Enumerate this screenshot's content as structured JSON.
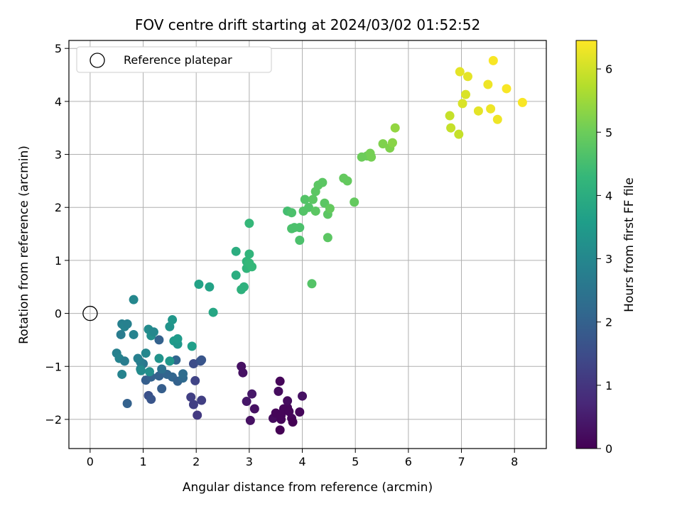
{
  "chart_data": {
    "type": "scatter",
    "title": "FOV centre drift starting at 2024/03/02 01:52:52",
    "xlabel": "Angular distance from reference (arcmin)",
    "ylabel": "Rotation from reference (arcmin)",
    "xlim": [
      -0.4,
      8.6
    ],
    "ylim": [
      -2.55,
      5.15
    ],
    "xticks": [
      0,
      1,
      2,
      3,
      4,
      5,
      6,
      7,
      8
    ],
    "yticks": [
      -2,
      -1,
      0,
      1,
      2,
      3,
      4,
      5
    ],
    "grid": true,
    "legend": {
      "placement": "top-left",
      "entries": [
        "Reference platepar"
      ]
    },
    "reference_point": {
      "x": 0,
      "y": 0
    },
    "colorbar": {
      "label": "Hours from first FF file",
      "range": [
        0,
        6.45
      ],
      "ticks": [
        0,
        1,
        2,
        3,
        4,
        5,
        6
      ],
      "colormap": "viridis"
    },
    "points": [
      {
        "x": 2.85,
        "y": -1.0,
        "t": 0.3
      },
      {
        "x": 2.88,
        "y": -1.12,
        "t": 0.3
      },
      {
        "x": 2.95,
        "y": -1.66,
        "t": 0.4
      },
      {
        "x": 3.05,
        "y": -1.52,
        "t": 0.4
      },
      {
        "x": 3.1,
        "y": -1.8,
        "t": 0.3
      },
      {
        "x": 3.02,
        "y": -2.02,
        "t": 0.3
      },
      {
        "x": 3.45,
        "y": -1.98,
        "t": 0.2
      },
      {
        "x": 3.5,
        "y": -1.88,
        "t": 0.1
      },
      {
        "x": 3.55,
        "y": -1.47,
        "t": 0.2
      },
      {
        "x": 3.58,
        "y": -1.28,
        "t": 0.1
      },
      {
        "x": 3.6,
        "y": -1.92,
        "t": 0.1
      },
      {
        "x": 3.65,
        "y": -1.8,
        "t": 0.1
      },
      {
        "x": 3.58,
        "y": -2.2,
        "t": 0.0
      },
      {
        "x": 3.6,
        "y": -2.0,
        "t": 0.1
      },
      {
        "x": 3.72,
        "y": -1.78,
        "t": 0.1
      },
      {
        "x": 3.75,
        "y": -1.85,
        "t": 0.1
      },
      {
        "x": 3.72,
        "y": -1.65,
        "t": 0.2
      },
      {
        "x": 3.8,
        "y": -1.98,
        "t": 0.1
      },
      {
        "x": 3.82,
        "y": -2.05,
        "t": 0.0
      },
      {
        "x": 3.95,
        "y": -1.86,
        "t": 0.1
      },
      {
        "x": 4.0,
        "y": -1.56,
        "t": 0.3
      },
      {
        "x": 1.95,
        "y": -1.72,
        "t": 1.2
      },
      {
        "x": 1.9,
        "y": -1.58,
        "t": 1.2
      },
      {
        "x": 2.02,
        "y": -1.92,
        "t": 1.1
      },
      {
        "x": 2.1,
        "y": -1.64,
        "t": 1.2
      },
      {
        "x": 1.98,
        "y": -1.27,
        "t": 1.3
      },
      {
        "x": 1.95,
        "y": -0.95,
        "t": 1.5
      },
      {
        "x": 2.08,
        "y": -0.9,
        "t": 1.6
      },
      {
        "x": 2.1,
        "y": -0.88,
        "t": 1.7
      },
      {
        "x": 1.1,
        "y": -1.55,
        "t": 1.6
      },
      {
        "x": 1.15,
        "y": -1.62,
        "t": 1.7
      },
      {
        "x": 0.7,
        "y": -1.7,
        "t": 2.0
      },
      {
        "x": 1.05,
        "y": -1.26,
        "t": 1.9
      },
      {
        "x": 1.15,
        "y": -1.2,
        "t": 2.0
      },
      {
        "x": 1.3,
        "y": -1.18,
        "t": 2.0
      },
      {
        "x": 1.35,
        "y": -1.42,
        "t": 1.9
      },
      {
        "x": 1.45,
        "y": -1.15,
        "t": 2.1
      },
      {
        "x": 1.55,
        "y": -1.2,
        "t": 2.1
      },
      {
        "x": 1.65,
        "y": -1.28,
        "t": 2.0
      },
      {
        "x": 1.75,
        "y": -1.22,
        "t": 2.2
      },
      {
        "x": 1.75,
        "y": -1.14,
        "t": 2.3
      },
      {
        "x": 1.62,
        "y": -0.88,
        "t": 2.1
      },
      {
        "x": 1.3,
        "y": -0.5,
        "t": 2.0
      },
      {
        "x": 1.35,
        "y": -1.05,
        "t": 2.4
      },
      {
        "x": 1.0,
        "y": -0.95,
        "t": 2.5
      },
      {
        "x": 0.95,
        "y": -0.92,
        "t": 2.7
      },
      {
        "x": 0.9,
        "y": -0.85,
        "t": 2.8
      },
      {
        "x": 0.95,
        "y": -1.05,
        "t": 2.9
      },
      {
        "x": 0.6,
        "y": -1.15,
        "t": 2.9
      },
      {
        "x": 0.5,
        "y": -0.75,
        "t": 2.8
      },
      {
        "x": 0.55,
        "y": -0.85,
        "t": 2.9
      },
      {
        "x": 0.65,
        "y": -0.9,
        "t": 2.7
      },
      {
        "x": 0.58,
        "y": -0.4,
        "t": 2.7
      },
      {
        "x": 0.6,
        "y": -0.2,
        "t": 2.8
      },
      {
        "x": 0.65,
        "y": -0.25,
        "t": 2.9
      },
      {
        "x": 0.7,
        "y": -0.2,
        "t": 2.8
      },
      {
        "x": 0.82,
        "y": -0.4,
        "t": 2.9
      },
      {
        "x": 0.82,
        "y": 0.26,
        "t": 3.0
      },
      {
        "x": 1.05,
        "y": -0.75,
        "t": 3.0
      },
      {
        "x": 1.12,
        "y": -1.1,
        "t": 3.2
      },
      {
        "x": 0.96,
        "y": -1.08,
        "t": 3.1
      },
      {
        "x": 1.1,
        "y": -0.3,
        "t": 3.1
      },
      {
        "x": 1.15,
        "y": -0.42,
        "t": 3.2
      },
      {
        "x": 1.2,
        "y": -0.35,
        "t": 3.0
      },
      {
        "x": 1.3,
        "y": -0.85,
        "t": 3.3
      },
      {
        "x": 1.5,
        "y": -0.9,
        "t": 3.4
      },
      {
        "x": 1.5,
        "y": -0.25,
        "t": 3.3
      },
      {
        "x": 1.55,
        "y": -0.12,
        "t": 3.4
      },
      {
        "x": 1.58,
        "y": -0.52,
        "t": 3.5
      },
      {
        "x": 1.65,
        "y": -0.58,
        "t": 3.4
      },
      {
        "x": 1.65,
        "y": -0.48,
        "t": 3.5
      },
      {
        "x": 1.92,
        "y": -0.62,
        "t": 3.6
      },
      {
        "x": 2.05,
        "y": 0.55,
        "t": 3.7
      },
      {
        "x": 2.25,
        "y": 0.5,
        "t": 3.7
      },
      {
        "x": 2.32,
        "y": 0.02,
        "t": 3.8
      },
      {
        "x": 2.75,
        "y": 1.17,
        "t": 4.0
      },
      {
        "x": 2.75,
        "y": 0.72,
        "t": 4.0
      },
      {
        "x": 2.85,
        "y": 0.45,
        "t": 4.1
      },
      {
        "x": 2.9,
        "y": 0.5,
        "t": 4.1
      },
      {
        "x": 2.95,
        "y": 0.98,
        "t": 4.2
      },
      {
        "x": 2.95,
        "y": 0.85,
        "t": 4.2
      },
      {
        "x": 3.0,
        "y": 1.12,
        "t": 4.2
      },
      {
        "x": 3.0,
        "y": 0.95,
        "t": 4.3
      },
      {
        "x": 3.05,
        "y": 0.88,
        "t": 4.3
      },
      {
        "x": 3.0,
        "y": 1.7,
        "t": 4.3
      },
      {
        "x": 3.72,
        "y": 1.93,
        "t": 4.5
      },
      {
        "x": 3.8,
        "y": 1.9,
        "t": 4.6
      },
      {
        "x": 3.8,
        "y": 1.6,
        "t": 4.6
      },
      {
        "x": 3.85,
        "y": 1.62,
        "t": 4.6
      },
      {
        "x": 3.95,
        "y": 1.62,
        "t": 4.6
      },
      {
        "x": 3.95,
        "y": 1.38,
        "t": 4.6
      },
      {
        "x": 4.02,
        "y": 1.93,
        "t": 4.7
      },
      {
        "x": 4.05,
        "y": 2.15,
        "t": 4.7
      },
      {
        "x": 4.12,
        "y": 2.0,
        "t": 4.7
      },
      {
        "x": 4.18,
        "y": 0.56,
        "t": 4.7
      },
      {
        "x": 4.2,
        "y": 2.15,
        "t": 4.8
      },
      {
        "x": 4.25,
        "y": 2.3,
        "t": 4.8
      },
      {
        "x": 4.25,
        "y": 1.93,
        "t": 4.8
      },
      {
        "x": 4.3,
        "y": 2.42,
        "t": 4.8
      },
      {
        "x": 4.38,
        "y": 2.47,
        "t": 4.8
      },
      {
        "x": 4.42,
        "y": 2.08,
        "t": 4.8
      },
      {
        "x": 4.48,
        "y": 1.87,
        "t": 4.8
      },
      {
        "x": 4.52,
        "y": 1.98,
        "t": 4.9
      },
      {
        "x": 4.48,
        "y": 1.43,
        "t": 4.8
      },
      {
        "x": 4.78,
        "y": 2.55,
        "t": 4.9
      },
      {
        "x": 4.85,
        "y": 2.5,
        "t": 4.9
      },
      {
        "x": 4.98,
        "y": 2.1,
        "t": 4.9
      },
      {
        "x": 5.12,
        "y": 2.95,
        "t": 5.0
      },
      {
        "x": 5.22,
        "y": 2.97,
        "t": 5.0
      },
      {
        "x": 5.28,
        "y": 3.02,
        "t": 5.1
      },
      {
        "x": 5.3,
        "y": 2.95,
        "t": 5.1
      },
      {
        "x": 5.52,
        "y": 3.2,
        "t": 5.2
      },
      {
        "x": 5.65,
        "y": 3.12,
        "t": 5.2
      },
      {
        "x": 5.7,
        "y": 3.22,
        "t": 5.3
      },
      {
        "x": 5.75,
        "y": 3.5,
        "t": 5.4
      },
      {
        "x": 6.78,
        "y": 3.73,
        "t": 5.9
      },
      {
        "x": 6.8,
        "y": 3.5,
        "t": 5.9
      },
      {
        "x": 6.95,
        "y": 3.38,
        "t": 5.9
      },
      {
        "x": 6.97,
        "y": 4.56,
        "t": 6.2
      },
      {
        "x": 7.02,
        "y": 3.96,
        "t": 6.1
      },
      {
        "x": 7.08,
        "y": 4.13,
        "t": 6.1
      },
      {
        "x": 7.12,
        "y": 4.47,
        "t": 6.2
      },
      {
        "x": 7.32,
        "y": 3.82,
        "t": 6.2
      },
      {
        "x": 7.5,
        "y": 4.32,
        "t": 6.3
      },
      {
        "x": 7.55,
        "y": 3.86,
        "t": 6.3
      },
      {
        "x": 7.6,
        "y": 4.77,
        "t": 6.4
      },
      {
        "x": 7.68,
        "y": 3.66,
        "t": 6.3
      },
      {
        "x": 7.85,
        "y": 4.24,
        "t": 6.4
      },
      {
        "x": 8.15,
        "y": 3.98,
        "t": 6.4
      }
    ]
  }
}
